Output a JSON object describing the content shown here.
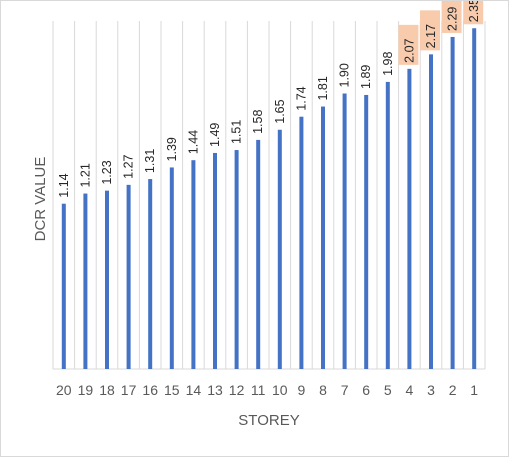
{
  "chart_data": {
    "type": "bar",
    "title": "",
    "xlabel": "STOREY",
    "ylabel": "DCR VALUE",
    "categories": [
      "20",
      "19",
      "18",
      "17",
      "16",
      "15",
      "14",
      "13",
      "12",
      "11",
      "10",
      "9",
      "8",
      "7",
      "6",
      "5",
      "4",
      "3",
      "2",
      "1"
    ],
    "series": [
      {
        "values": [
          1.14,
          1.21,
          1.23,
          1.27,
          1.31,
          1.39,
          1.44,
          1.49,
          1.51,
          1.58,
          1.65,
          1.74,
          1.81,
          1.9,
          1.89,
          1.98,
          2.07,
          2.17,
          2.29,
          2.35
        ]
      }
    ],
    "data_labels": [
      "1.14",
      "1.21",
      "1.23",
      "1.27",
      "1.31",
      "1.39",
      "1.44",
      "1.49",
      "1.51",
      "1.58",
      "1.65",
      "1.74",
      "1.81",
      "1.90",
      "1.89",
      "1.98",
      "2.07",
      "2.17",
      "2.29",
      "2.35"
    ],
    "highlighted_categories": [
      "4",
      "3",
      "2",
      "1"
    ],
    "ylim": [
      0,
      2.4
    ],
    "grid": true,
    "legend": "none",
    "colors": {
      "bar": "#4472c4",
      "highlight_label_bg": "#f8cbad",
      "grid": "#d9d9d9",
      "text": "#595959"
    }
  }
}
